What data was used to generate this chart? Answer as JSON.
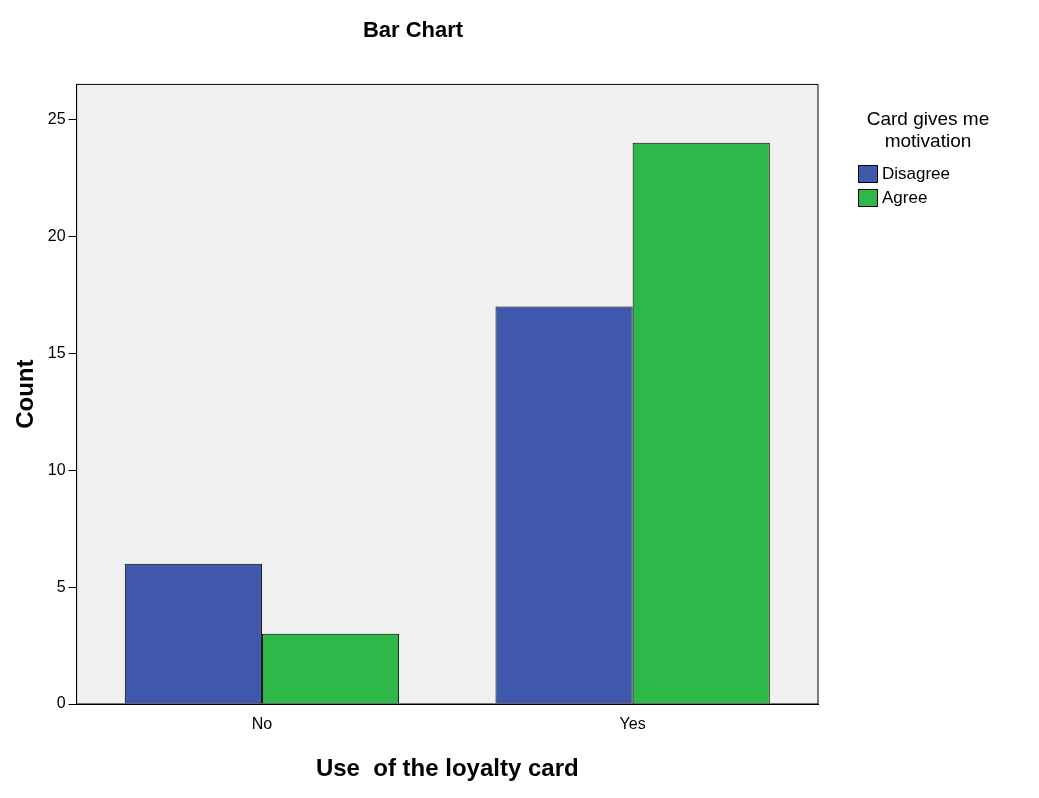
{
  "chart_data": {
    "type": "bar",
    "title": "Bar Chart",
    "xlabel": "Use  of the loyalty card",
    "ylabel": "Count",
    "legend_title": "Card gives me motivation",
    "categories": [
      "No",
      "Yes"
    ],
    "series": [
      {
        "name": "Disagree",
        "color": "#3f58ab",
        "values": [
          6,
          17
        ]
      },
      {
        "name": "Agree",
        "color": "#2fb84a",
        "values": [
          3,
          24
        ]
      }
    ],
    "ylim": [
      0,
      26.5
    ],
    "yticks": [
      0,
      5,
      10,
      15,
      20,
      25
    ],
    "grid": false,
    "legend": "top right"
  }
}
